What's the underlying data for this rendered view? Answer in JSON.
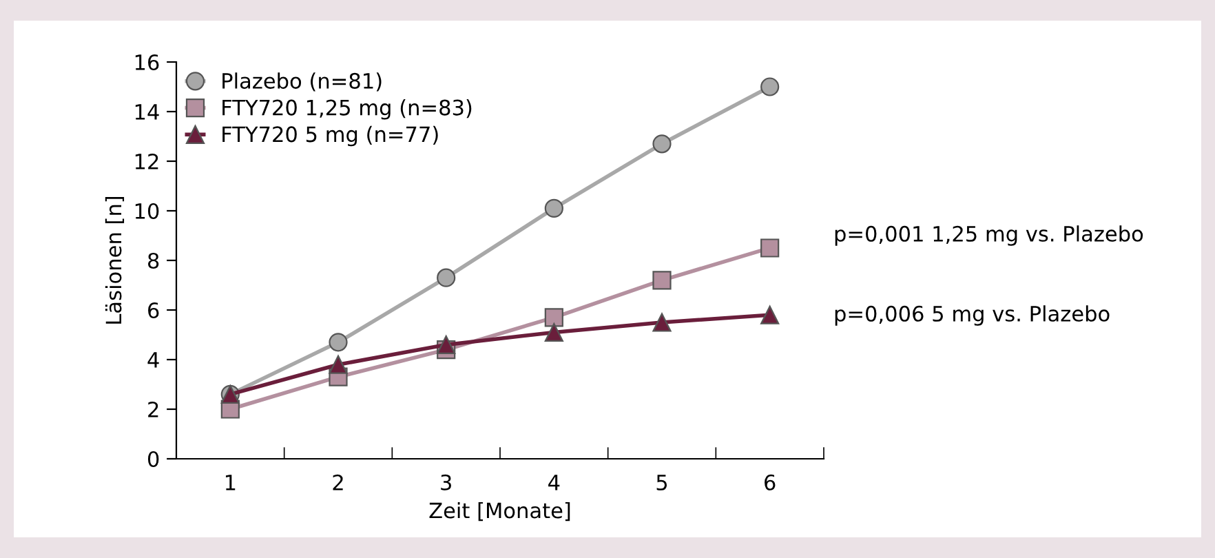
{
  "chart_data": {
    "type": "line",
    "xlabel": "Zeit [Monate]",
    "ylabel": "Läsionen [n]",
    "x": [
      1,
      2,
      3,
      4,
      5,
      6
    ],
    "xlim": [
      0.5,
      6.5
    ],
    "xticks": [
      {
        "value": 0.5,
        "label": null
      },
      1,
      {
        "value": 1.5,
        "label": null
      },
      2,
      {
        "value": 2.5,
        "label": null
      },
      3,
      {
        "value": 3.5,
        "label": null
      },
      4,
      {
        "value": 4.5,
        "label": null
      },
      5,
      {
        "value": 5.5,
        "label": null
      },
      6,
      {
        "value": 6.5,
        "label": null
      }
    ],
    "ylim": [
      0,
      16
    ],
    "yticks": [
      0,
      2,
      4,
      6,
      8,
      10,
      12,
      14,
      16
    ],
    "series": [
      {
        "name": "Plazebo (n=81)",
        "color": "#a8a8a8",
        "marker": "circle",
        "values": [
          2.6,
          4.7,
          7.3,
          10.1,
          12.7,
          15.0
        ]
      },
      {
        "name": "FTY720 1,25 mg (n=83)",
        "color": "#b4909f",
        "marker": "square",
        "values": [
          2.0,
          3.3,
          4.4,
          5.7,
          7.2,
          8.5
        ]
      },
      {
        "name": "FTY720 5 mg (n=77)",
        "color": "#6a1e3b",
        "marker": "triangle",
        "values": [
          2.6,
          3.8,
          4.6,
          5.1,
          5.5,
          5.8
        ]
      }
    ],
    "annotations": [
      "p=0,001 1,25 mg vs. Plazebo",
      "p=0,006 5 mg vs. Plazebo"
    ],
    "legend": "top left",
    "grid": false
  }
}
